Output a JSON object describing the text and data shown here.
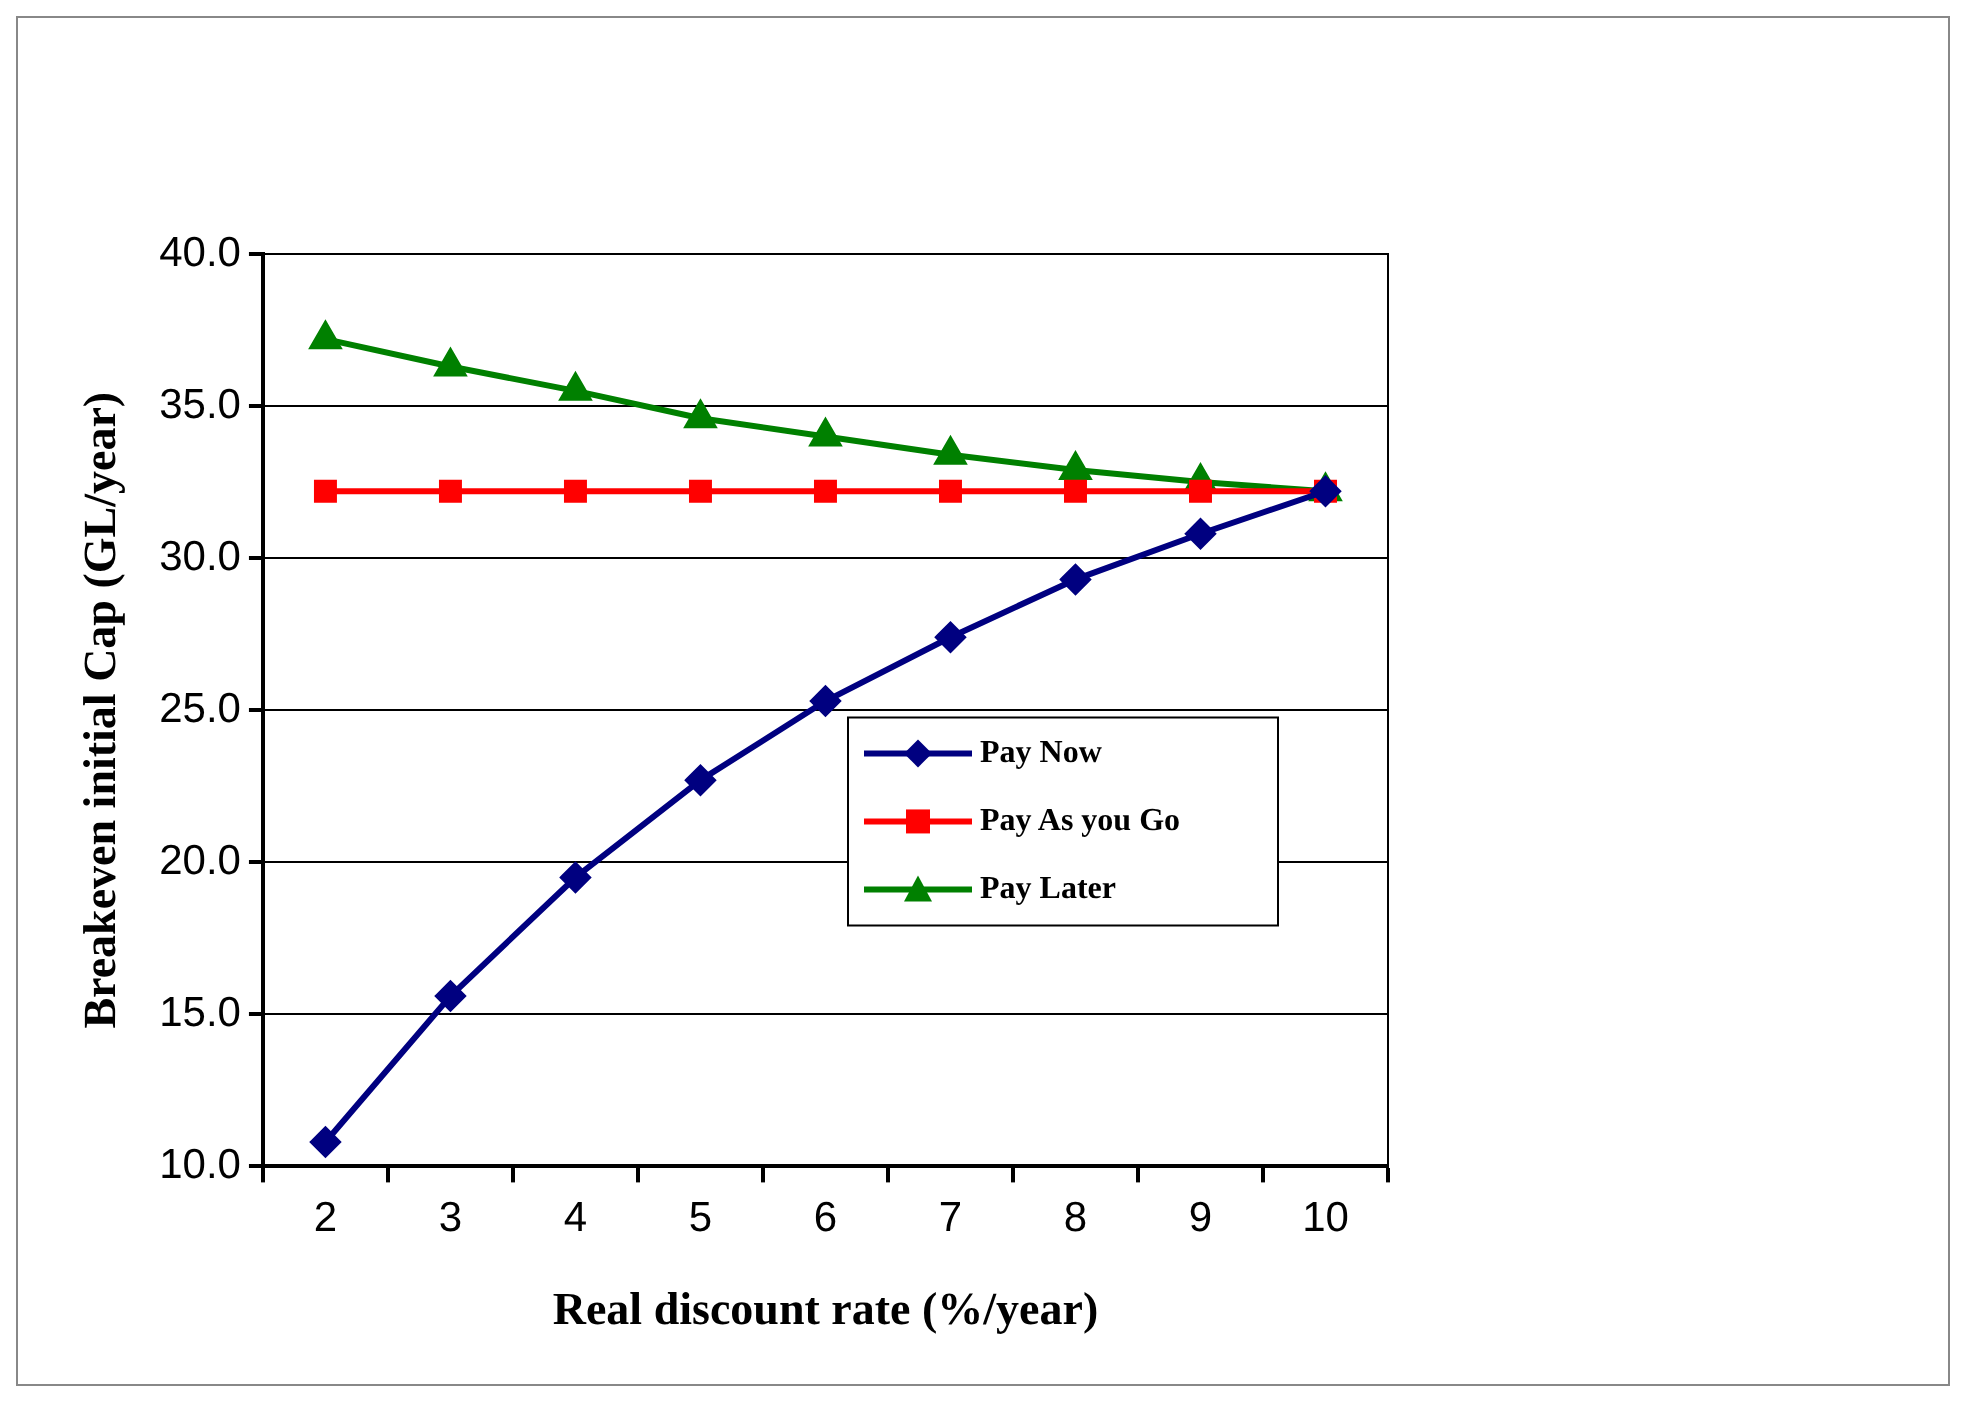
{
  "chart_data": {
    "type": "line",
    "xlabel": "Real discount rate (%/year)",
    "ylabel": "Breakeven initial Cap (GL/year)",
    "categories": [
      "2",
      "3",
      "4",
      "5",
      "6",
      "7",
      "8",
      "9",
      "10"
    ],
    "series": [
      {
        "name": "Pay Now",
        "color": "#000080",
        "marker": "diamond",
        "values": [
          10.8,
          15.6,
          19.5,
          22.7,
          25.3,
          27.4,
          29.3,
          30.8,
          32.2
        ]
      },
      {
        "name": "Pay As you Go",
        "color": "#ff0000",
        "marker": "square",
        "values": [
          32.2,
          32.2,
          32.2,
          32.2,
          32.2,
          32.2,
          32.2,
          32.2,
          32.2
        ]
      },
      {
        "name": "Pay Later",
        "color": "#008000",
        "marker": "triangle",
        "values": [
          37.2,
          36.3,
          35.5,
          34.6,
          34.0,
          33.4,
          32.9,
          32.5,
          32.2
        ]
      }
    ],
    "ylim": [
      10,
      40
    ],
    "yticks": [
      {
        "value": 10,
        "label": "10.0"
      },
      {
        "value": 15,
        "label": "15.0"
      },
      {
        "value": 20,
        "label": "20.0"
      },
      {
        "value": 25,
        "label": "25.0"
      },
      {
        "value": 30,
        "label": "30.0"
      },
      {
        "value": 35,
        "label": "35.0"
      },
      {
        "value": 40,
        "label": "40.0"
      }
    ],
    "grid": "y",
    "legend": "right"
  }
}
